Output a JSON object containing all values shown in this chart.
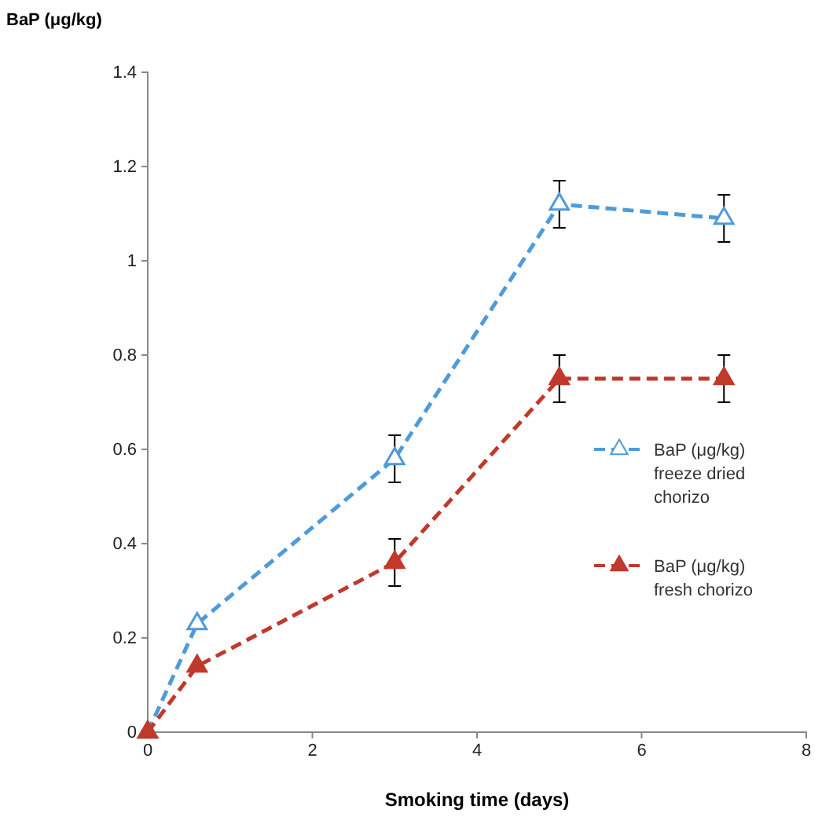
{
  "chart_data": {
    "type": "line",
    "xlabel": "Smoking time (days)",
    "ylabel": "BaP (μg/kg)",
    "xlim": [
      0,
      8
    ],
    "xticks": [
      0,
      2,
      4,
      6,
      8
    ],
    "ylim": [
      0,
      1.4
    ],
    "yticks": [
      0,
      0.2,
      0.4,
      0.6,
      0.8,
      1,
      1.2,
      1.4
    ],
    "x": [
      0,
      0.6,
      3,
      5,
      7
    ],
    "series": [
      {
        "name": "BaP (μg/kg) freeze dried chorizo",
        "color": "#4f9bd9",
        "values": [
          0,
          0.23,
          0.58,
          1.12,
          1.09
        ],
        "errors": [
          null,
          null,
          0.05,
          0.05,
          0.05
        ]
      },
      {
        "name": "BaP (μg/kg) fresh chorizo",
        "color": "#c0392b",
        "values": [
          0,
          0.14,
          0.36,
          0.75,
          0.75
        ],
        "errors": [
          null,
          null,
          0.05,
          0.05,
          0.05
        ]
      }
    ],
    "marker": "triangle",
    "line_style": "dashed",
    "legend": "right",
    "grid": false
  }
}
